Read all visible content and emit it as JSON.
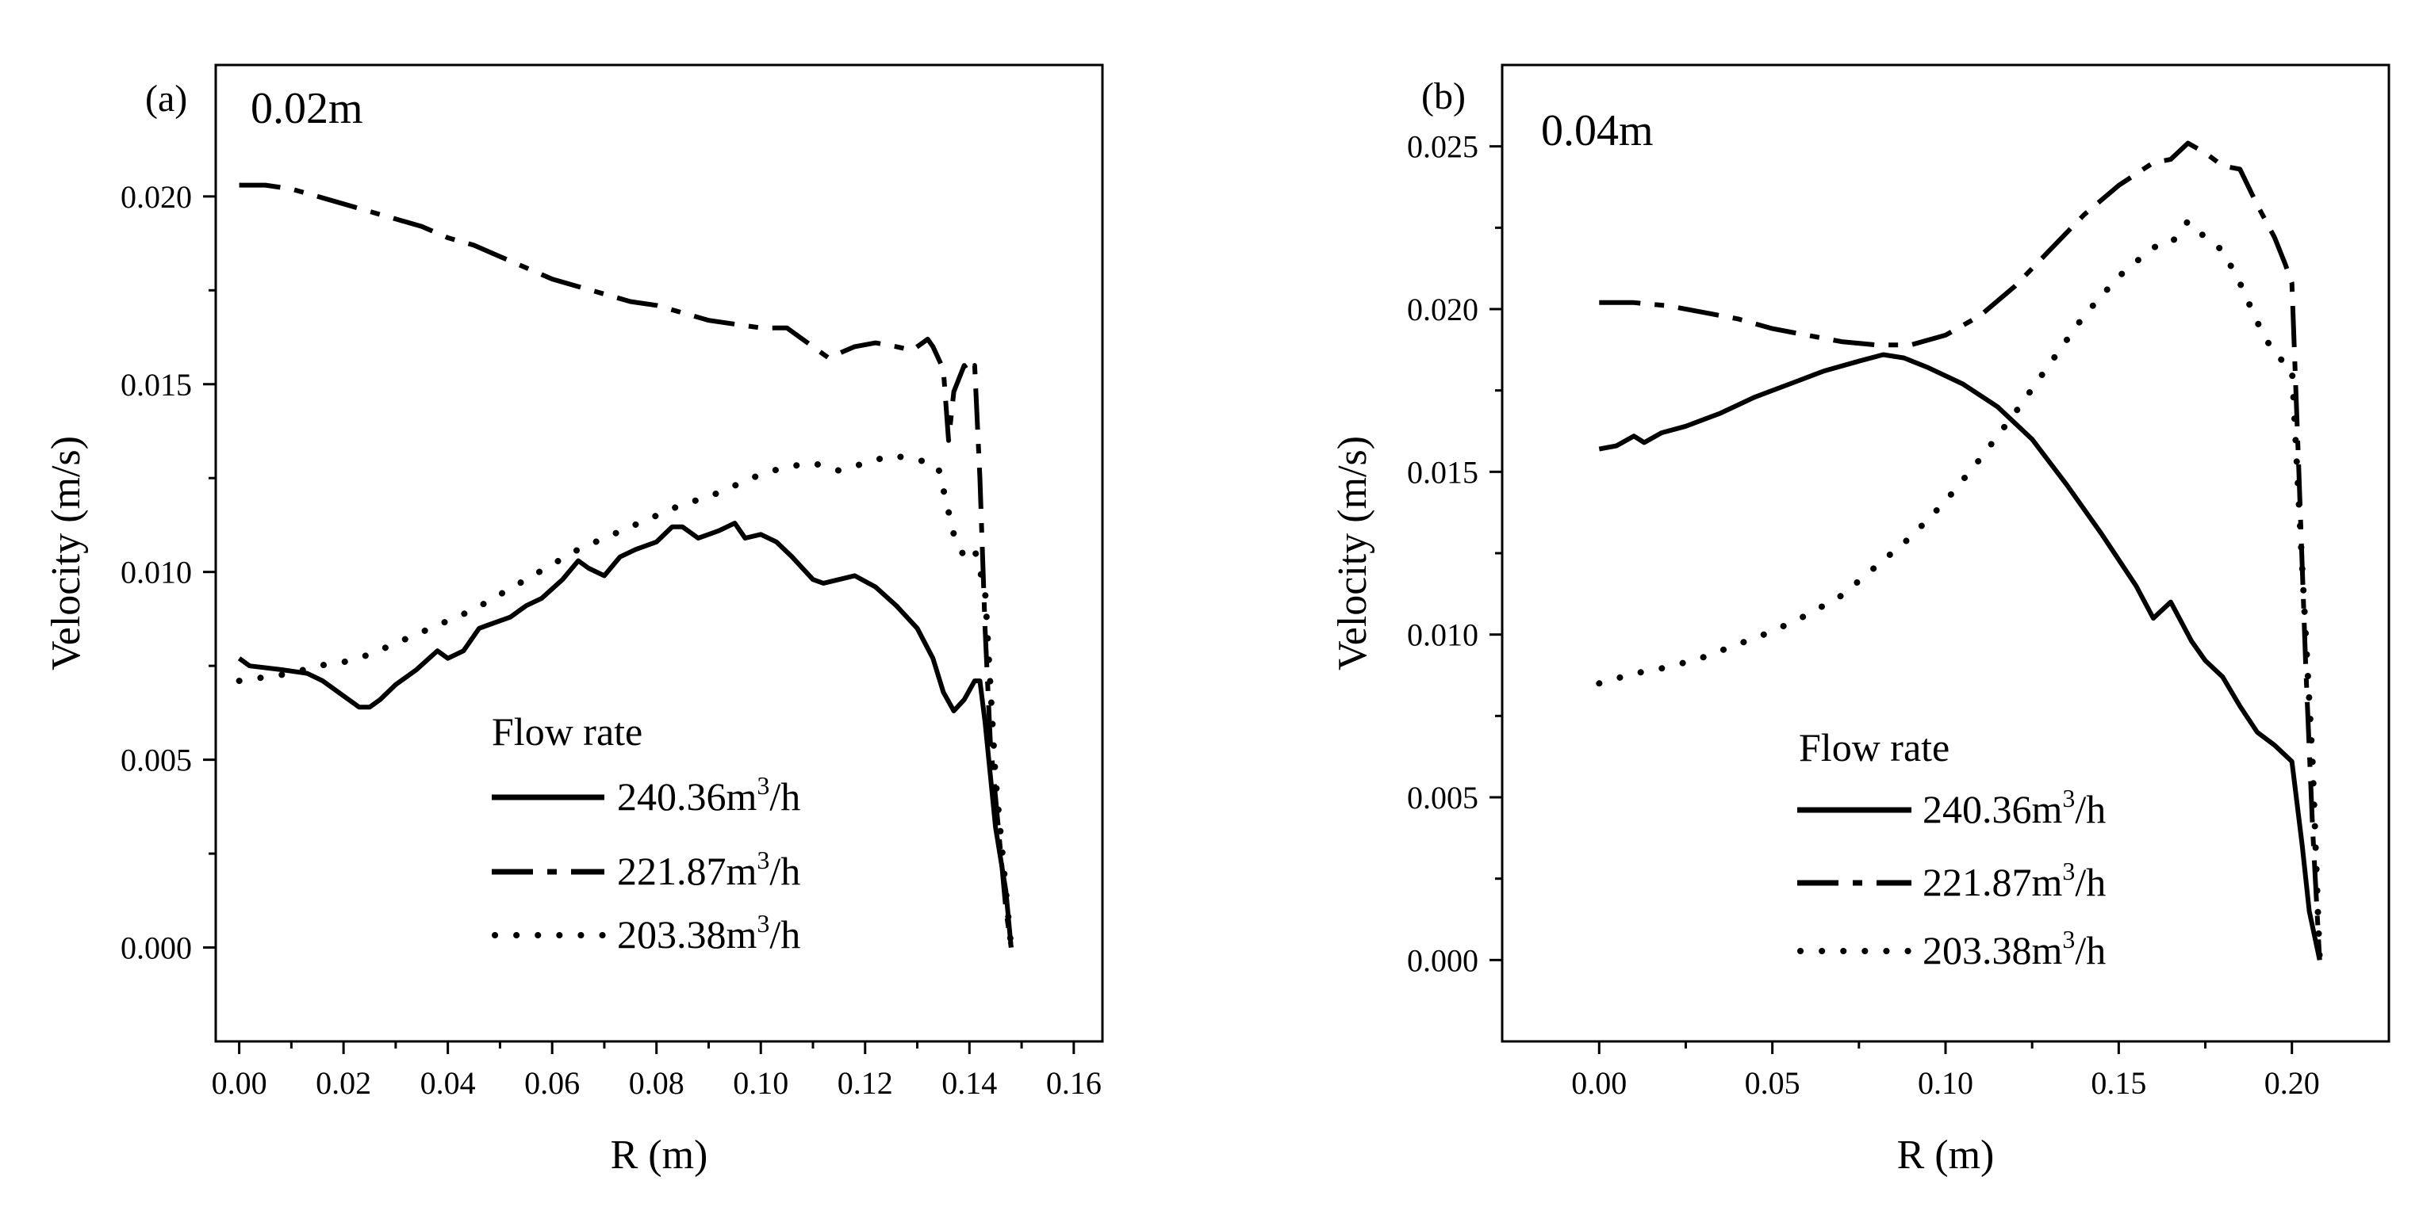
{
  "chart_data": [
    {
      "type": "line",
      "panel": "(a)",
      "annotation": "0.02m",
      "xlabel": "R (m)",
      "ylabel": "Velocity (m/s)",
      "xlim": [
        -0.0045,
        0.1655
      ],
      "ylim": [
        -0.0025,
        0.0235
      ],
      "xticks": [
        0.0,
        0.02,
        0.04,
        0.06,
        0.08,
        0.1,
        0.12,
        0.14,
        0.16
      ],
      "xtick_labels": [
        "0.00",
        "0.02",
        "0.04",
        "0.06",
        "0.08",
        "0.10",
        "0.12",
        "0.14",
        "0.16"
      ],
      "yticks": [
        0.0,
        0.005,
        0.01,
        0.015,
        0.02
      ],
      "ytick_labels": [
        "0.000",
        "0.005",
        "0.010",
        "0.015",
        "0.020"
      ],
      "legend": {
        "title": "Flow rate",
        "location": "lower-center",
        "entries": [
          {
            "base": "240.36m",
            "sup": "3",
            "tail": "/h",
            "style": "solid"
          },
          {
            "base": "221.87m",
            "sup": "3",
            "tail": "/h",
            "style": "dashdot"
          },
          {
            "base": "203.38m",
            "sup": "3",
            "tail": "/h",
            "style": "dot"
          }
        ]
      },
      "series": [
        {
          "name": "240.36m3/h",
          "style": "solid",
          "x": [
            0.0,
            0.002,
            0.008,
            0.013,
            0.016,
            0.02,
            0.023,
            0.025,
            0.027,
            0.03,
            0.034,
            0.038,
            0.04,
            0.043,
            0.046,
            0.048,
            0.052,
            0.055,
            0.058,
            0.062,
            0.065,
            0.067,
            0.07,
            0.073,
            0.076,
            0.08,
            0.083,
            0.085,
            0.088,
            0.092,
            0.095,
            0.097,
            0.1,
            0.103,
            0.106,
            0.11,
            0.112,
            0.115,
            0.118,
            0.122,
            0.126,
            0.13,
            0.133,
            0.135,
            0.137,
            0.139,
            0.141,
            0.142,
            0.143,
            0.145,
            0.147,
            0.148
          ],
          "y": [
            0.0077,
            0.0075,
            0.0074,
            0.0073,
            0.0071,
            0.0067,
            0.0064,
            0.0064,
            0.0066,
            0.007,
            0.0074,
            0.0079,
            0.0077,
            0.0079,
            0.0085,
            0.0086,
            0.0088,
            0.0091,
            0.0093,
            0.0098,
            0.0103,
            0.0101,
            0.0099,
            0.0104,
            0.0106,
            0.0108,
            0.0112,
            0.0112,
            0.0109,
            0.0111,
            0.0113,
            0.0109,
            0.011,
            0.0108,
            0.0104,
            0.0098,
            0.0097,
            0.0098,
            0.0099,
            0.0096,
            0.0091,
            0.0085,
            0.0077,
            0.0068,
            0.0063,
            0.0066,
            0.0071,
            0.0071,
            0.006,
            0.0032,
            0.0015,
            0.0
          ]
        },
        {
          "name": "221.87m3/h",
          "style": "dashdot",
          "x": [
            0.0,
            0.005,
            0.01,
            0.015,
            0.02,
            0.025,
            0.03,
            0.035,
            0.04,
            0.045,
            0.05,
            0.055,
            0.06,
            0.065,
            0.07,
            0.075,
            0.08,
            0.085,
            0.09,
            0.095,
            0.1,
            0.105,
            0.11,
            0.113,
            0.118,
            0.122,
            0.126,
            0.129,
            0.132,
            0.133,
            0.135,
            0.136,
            0.137,
            0.139,
            0.14,
            0.141,
            0.142,
            0.143,
            0.144,
            0.146,
            0.147,
            0.148
          ],
          "y": [
            0.0203,
            0.0203,
            0.0202,
            0.02,
            0.0198,
            0.0196,
            0.0194,
            0.0192,
            0.0189,
            0.0187,
            0.0184,
            0.0181,
            0.0178,
            0.0176,
            0.0174,
            0.0172,
            0.0171,
            0.0169,
            0.0167,
            0.0166,
            0.0165,
            0.0165,
            0.016,
            0.0157,
            0.016,
            0.0161,
            0.016,
            0.0159,
            0.0162,
            0.016,
            0.0154,
            0.0135,
            0.0148,
            0.0155,
            0.0153,
            0.0155,
            0.0125,
            0.0085,
            0.0055,
            0.0025,
            0.001,
            0.0
          ]
        },
        {
          "name": "203.38m3/h",
          "style": "dot",
          "x": [
            0.0,
            0.005,
            0.01,
            0.015,
            0.02,
            0.025,
            0.03,
            0.035,
            0.04,
            0.045,
            0.05,
            0.055,
            0.06,
            0.065,
            0.07,
            0.075,
            0.08,
            0.085,
            0.09,
            0.095,
            0.1,
            0.105,
            0.11,
            0.115,
            0.12,
            0.125,
            0.13,
            0.134,
            0.137,
            0.139,
            0.141,
            0.143,
            0.145,
            0.147,
            0.148
          ],
          "y": [
            0.0071,
            0.0072,
            0.0073,
            0.0075,
            0.0076,
            0.0078,
            0.0081,
            0.0084,
            0.0087,
            0.009,
            0.0094,
            0.0098,
            0.0102,
            0.0106,
            0.0109,
            0.0112,
            0.0115,
            0.0118,
            0.012,
            0.0123,
            0.0126,
            0.0128,
            0.0129,
            0.0127,
            0.0129,
            0.0131,
            0.013,
            0.0128,
            0.011,
            0.0104,
            0.0106,
            0.0095,
            0.0045,
            0.0015,
            0.0
          ]
        }
      ]
    },
    {
      "type": "line",
      "panel": "(b)",
      "annotation": "0.04m",
      "xlabel": "R (m)",
      "ylabel": "Velocity (m/s)",
      "xlim": [
        -0.028,
        0.228
      ],
      "ylim": [
        -0.0025,
        0.0275
      ],
      "xticks": [
        0.0,
        0.05,
        0.1,
        0.15,
        0.2
      ],
      "xtick_labels": [
        "0.00",
        "0.05",
        "0.10",
        "0.15",
        "0.20"
      ],
      "yticks": [
        0.0,
        0.005,
        0.01,
        0.015,
        0.02,
        0.025
      ],
      "ytick_labels": [
        "0.000",
        "0.005",
        "0.010",
        "0.015",
        "0.020",
        "0.025"
      ],
      "legend": {
        "title": "Flow rate",
        "location": "lower-center",
        "entries": [
          {
            "base": "240.36m",
            "sup": "3",
            "tail": "/h",
            "style": "solid"
          },
          {
            "base": "221.87m",
            "sup": "3",
            "tail": "/h",
            "style": "dashdot"
          },
          {
            "base": "203.38m",
            "sup": "3",
            "tail": "/h",
            "style": "dot"
          }
        ]
      },
      "series": [
        {
          "name": "240.36m3/h",
          "style": "solid",
          "x": [
            0.0,
            0.005,
            0.01,
            0.013,
            0.018,
            0.025,
            0.035,
            0.045,
            0.055,
            0.065,
            0.075,
            0.082,
            0.088,
            0.095,
            0.105,
            0.115,
            0.125,
            0.135,
            0.145,
            0.155,
            0.16,
            0.165,
            0.168,
            0.171,
            0.175,
            0.18,
            0.185,
            0.19,
            0.195,
            0.2,
            0.203,
            0.205,
            0.208
          ],
          "y": [
            0.0157,
            0.0158,
            0.0161,
            0.0159,
            0.0162,
            0.0164,
            0.0168,
            0.0173,
            0.0177,
            0.0181,
            0.0184,
            0.0186,
            0.0185,
            0.0182,
            0.0177,
            0.017,
            0.016,
            0.0146,
            0.0131,
            0.0115,
            0.0105,
            0.011,
            0.0104,
            0.0098,
            0.0092,
            0.0087,
            0.0078,
            0.007,
            0.0066,
            0.0061,
            0.0035,
            0.0015,
            0.0
          ]
        },
        {
          "name": "221.87m3/h",
          "style": "dashdot",
          "x": [
            0.0,
            0.01,
            0.02,
            0.03,
            0.04,
            0.05,
            0.06,
            0.07,
            0.08,
            0.09,
            0.1,
            0.11,
            0.12,
            0.13,
            0.14,
            0.15,
            0.16,
            0.165,
            0.17,
            0.175,
            0.18,
            0.185,
            0.19,
            0.195,
            0.198,
            0.2,
            0.202,
            0.204,
            0.206,
            0.208
          ],
          "y": [
            0.0202,
            0.0202,
            0.0201,
            0.0199,
            0.0197,
            0.0194,
            0.0192,
            0.019,
            0.0189,
            0.0189,
            0.0192,
            0.0198,
            0.0207,
            0.0218,
            0.0229,
            0.0238,
            0.0245,
            0.0246,
            0.0251,
            0.0248,
            0.0244,
            0.0243,
            0.0232,
            0.0222,
            0.0214,
            0.0208,
            0.015,
            0.009,
            0.004,
            0.0
          ]
        },
        {
          "name": "203.38m3/h",
          "style": "dot",
          "x": [
            0.0,
            0.01,
            0.02,
            0.03,
            0.04,
            0.05,
            0.06,
            0.07,
            0.08,
            0.09,
            0.1,
            0.11,
            0.12,
            0.13,
            0.14,
            0.15,
            0.16,
            0.165,
            0.17,
            0.175,
            0.18,
            0.185,
            0.19,
            0.195,
            0.2,
            0.203,
            0.206,
            0.208
          ],
          "y": [
            0.0085,
            0.0088,
            0.009,
            0.0093,
            0.0097,
            0.0101,
            0.0106,
            0.0112,
            0.0121,
            0.013,
            0.0141,
            0.0154,
            0.0168,
            0.0183,
            0.0198,
            0.021,
            0.0219,
            0.022,
            0.0227,
            0.0222,
            0.0218,
            0.0208,
            0.0196,
            0.0186,
            0.0182,
            0.012,
            0.006,
            0.0
          ]
        }
      ]
    }
  ]
}
